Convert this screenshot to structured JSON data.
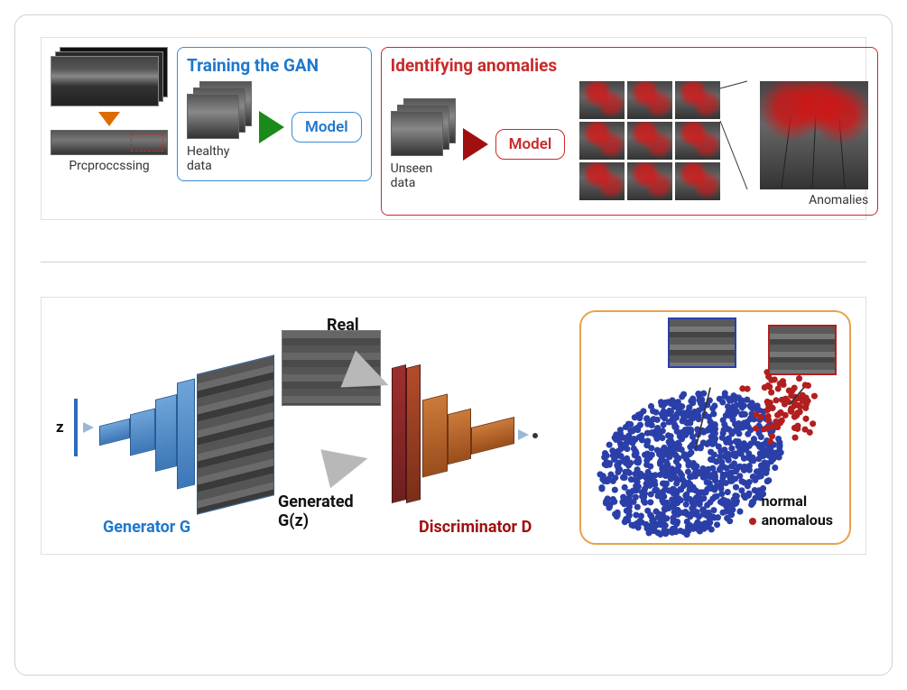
{
  "figure_top": {
    "preprocessing_label": "Prcproccssing",
    "panel_train": {
      "title": "Training the GAN",
      "title_color": "#1f78cc",
      "border_color": "#3a8bd8",
      "input_label": "Healthy data",
      "model_label": "Model",
      "arrow_color": "#1a8a1a"
    },
    "panel_ident": {
      "title": "Identifying anomalies",
      "title_color": "#c92a2a",
      "border_color": "#c92a2a",
      "input_label": "Unseen data",
      "model_label": "Model",
      "arrow_color": "#a11010",
      "output_label": "Anomalies",
      "grid_rows": 3,
      "grid_cols": 3,
      "anomaly_overlay_color": "#dc1414"
    },
    "preproc_arrow_color": "#dd6b00"
  },
  "figure_bottom": {
    "gan": {
      "z_label": "z",
      "generator_label": "Generator G",
      "generator_color": "#1f78cc",
      "real_label": "Real",
      "generated_label": "Generated",
      "generated_sub": "G(z)",
      "discriminator_label": "Discriminator D",
      "discriminator_color": "#a11010",
      "gen_block_color": "#3c77b6",
      "disc_block_color": "#9a4e1c",
      "gray_arrow_color": "#b8b8b8"
    },
    "scatter": {
      "border_color": "#e8a24a",
      "normal_color": "#2b3fa8",
      "anomalous_color": "#b21f1f",
      "legend_normal": "normal",
      "legend_anomalous": "anomalous",
      "normal_point_count": 900,
      "anomalous_point_count": 90,
      "normal_center": [
        0.4,
        0.58
      ],
      "normal_radii": [
        0.38,
        0.28
      ],
      "anom_center": [
        0.78,
        0.34
      ],
      "anom_radius": 0.07,
      "point_radius": 1.3
    }
  },
  "colors": {
    "card_border": "#d0d0d0",
    "inner_border": "#e0e0e0",
    "divider": "#cfcfcf"
  }
}
